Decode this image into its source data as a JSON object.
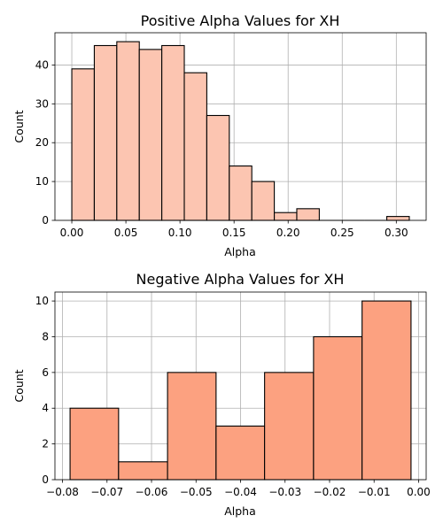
{
  "chart_data": [
    {
      "type": "bar",
      "title": "Positive Alpha Values for XH",
      "xlabel": "Alpha",
      "ylabel": "Count",
      "bin_edges": [
        0.0,
        0.0208,
        0.0416,
        0.0624,
        0.0832,
        0.104,
        0.1248,
        0.1456,
        0.1664,
        0.1872,
        0.208,
        0.2288,
        0.2496,
        0.2704,
        0.2912,
        0.312
      ],
      "values": [
        39,
        45,
        46,
        44,
        45,
        38,
        27,
        14,
        10,
        2,
        3,
        0,
        0,
        0,
        1
      ],
      "xlim": [
        -0.0156,
        0.3276
      ],
      "ylim": [
        0,
        48.3
      ],
      "xticks": [
        0.0,
        0.05,
        0.1,
        0.15,
        0.2,
        0.25,
        0.3
      ],
      "xtick_labels": [
        "0.00",
        "0.05",
        "0.10",
        "0.15",
        "0.20",
        "0.25",
        "0.30"
      ],
      "yticks": [
        0,
        10,
        20,
        30,
        40
      ],
      "ytick_labels": [
        "0",
        "10",
        "20",
        "30",
        "40"
      ],
      "grid": true,
      "bar_color": "#fcc5b1"
    },
    {
      "type": "bar",
      "title": "Negative Alpha Values for XH",
      "xlabel": "Alpha",
      "ylabel": "Count",
      "bin_edges": [
        -0.0783,
        -0.0674,
        -0.0564,
        -0.0455,
        -0.0346,
        -0.0236,
        -0.0127,
        -0.0017
      ],
      "values": [
        4,
        1,
        6,
        3,
        6,
        8,
        10
      ],
      "xlim": [
        -0.0817,
        0.0017
      ],
      "ylim": [
        0,
        10.5
      ],
      "xticks": [
        -0.08,
        -0.07,
        -0.06,
        -0.05,
        -0.04,
        -0.03,
        -0.02,
        -0.01,
        0.0
      ],
      "xtick_labels": [
        "−0.08",
        "−0.07",
        "−0.06",
        "−0.05",
        "−0.04",
        "−0.03",
        "−0.02",
        "−0.01",
        "0.00"
      ],
      "yticks": [
        0,
        2,
        4,
        6,
        8,
        10
      ],
      "ytick_labels": [
        "0",
        "2",
        "4",
        "6",
        "8",
        "10"
      ],
      "grid": true,
      "bar_color": "#fca180"
    }
  ]
}
